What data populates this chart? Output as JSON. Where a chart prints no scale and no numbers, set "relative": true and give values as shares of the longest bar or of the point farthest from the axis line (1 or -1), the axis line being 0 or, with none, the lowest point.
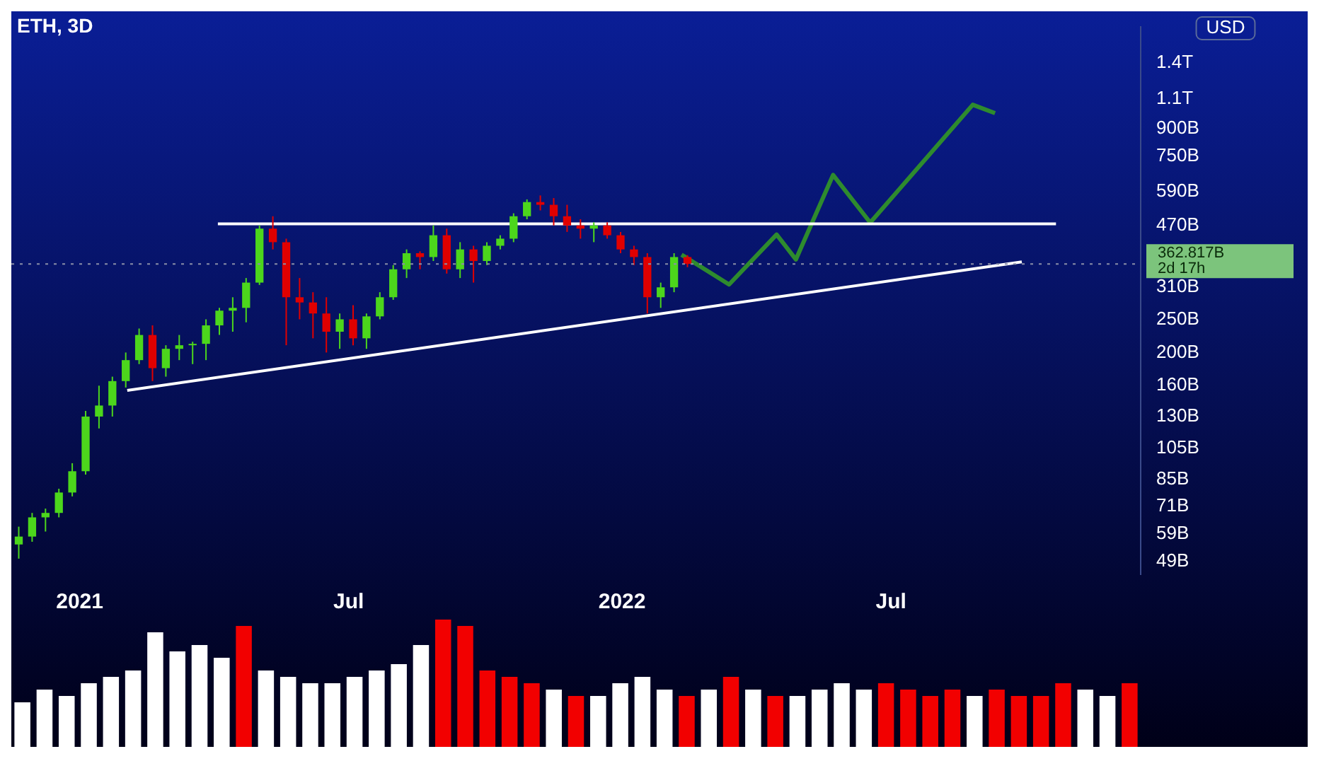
{
  "chart_data": [
    {
      "type": "candlestick",
      "title": "ETH, 3D",
      "x": [
        "2020-11-21",
        "2020-11-30",
        "2020-12-09",
        "2020-12-18",
        "2020-12-27",
        "2021-01-05",
        "2021-01-14",
        "2021-01-23",
        "2021-02-01",
        "2021-02-10",
        "2021-02-19",
        "2021-02-28",
        "2021-03-09",
        "2021-03-18",
        "2021-03-27",
        "2021-04-05",
        "2021-04-14",
        "2021-04-23",
        "2021-05-02",
        "2021-05-11",
        "2021-05-20",
        "2021-05-29",
        "2021-06-07",
        "2021-06-16",
        "2021-06-25",
        "2021-07-04",
        "2021-07-13",
        "2021-07-22",
        "2021-07-31",
        "2021-08-09",
        "2021-08-18",
        "2021-08-27",
        "2021-09-05",
        "2021-09-14",
        "2021-09-23",
        "2021-10-02",
        "2021-10-11",
        "2021-10-20",
        "2021-10-29",
        "2021-11-07",
        "2021-11-16",
        "2021-11-25",
        "2021-12-04",
        "2021-12-13",
        "2021-12-22",
        "2021-12-31",
        "2022-01-09",
        "2022-01-18",
        "2022-01-27",
        "2022-02-05",
        "2022-02-14"
      ],
      "ohlc": [
        [
          55000000000.0,
          62000000000.0,
          50000000000.0,
          58000000000.0
        ],
        [
          58000000000.0,
          68000000000.0,
          56000000000.0,
          66000000000.0
        ],
        [
          66000000000.0,
          70000000000.0,
          60000000000.0,
          68000000000.0
        ],
        [
          68000000000.0,
          80000000000.0,
          66000000000.0,
          78000000000.0
        ],
        [
          78000000000.0,
          95000000000.0,
          76000000000.0,
          90000000000.0
        ],
        [
          90000000000.0,
          135000000000.0,
          88000000000.0,
          130000000000.0
        ],
        [
          130000000000.0,
          160000000000.0,
          120000000000.0,
          140000000000.0
        ],
        [
          140000000000.0,
          170000000000.0,
          130000000000.0,
          165000000000.0
        ],
        [
          165000000000.0,
          200000000000.0,
          158000000000.0,
          190000000000.0
        ],
        [
          190000000000.0,
          235000000000.0,
          185000000000.0,
          225000000000.0
        ],
        [
          225000000000.0,
          240000000000.0,
          165000000000.0,
          180000000000.0
        ],
        [
          180000000000.0,
          210000000000.0,
          170000000000.0,
          205000000000.0
        ],
        [
          205000000000.0,
          225000000000.0,
          190000000000.0,
          210000000000.0
        ],
        [
          210000000000.0,
          215000000000.0,
          185000000000.0,
          212000000000.0
        ],
        [
          212000000000.0,
          250000000000.0,
          190000000000.0,
          240000000000.0
        ],
        [
          240000000000.0,
          270000000000.0,
          225000000000.0,
          265000000000.0
        ],
        [
          265000000000.0,
          290000000000.0,
          230000000000.0,
          270000000000.0
        ],
        [
          270000000000.0,
          330000000000.0,
          245000000000.0,
          320000000000.0
        ],
        [
          320000000000.0,
          470000000000.0,
          315000000000.0,
          460000000000.0
        ],
        [
          460000000000.0,
          500000000000.0,
          400000000000.0,
          420000000000.0
        ],
        [
          420000000000.0,
          430000000000.0,
          210000000000.0,
          290000000000.0
        ],
        [
          290000000000.0,
          330000000000.0,
          250000000000.0,
          280000000000.0
        ],
        [
          280000000000.0,
          300000000000.0,
          220000000000.0,
          260000000000.0
        ],
        [
          260000000000.0,
          290000000000.0,
          200000000000.0,
          230000000000.0
        ],
        [
          230000000000.0,
          260000000000.0,
          205000000000.0,
          250000000000.0
        ],
        [
          250000000000.0,
          275000000000.0,
          210000000000.0,
          220000000000.0
        ],
        [
          220000000000.0,
          260000000000.0,
          205000000000.0,
          255000000000.0
        ],
        [
          255000000000.0,
          300000000000.0,
          250000000000.0,
          290000000000.0
        ],
        [
          290000000000.0,
          360000000000.0,
          285000000000.0,
          350000000000.0
        ],
        [
          350000000000.0,
          400000000000.0,
          330000000000.0,
          390000000000.0
        ],
        [
          390000000000.0,
          395000000000.0,
          350000000000.0,
          380000000000.0
        ],
        [
          380000000000.0,
          470000000000.0,
          370000000000.0,
          440000000000.0
        ],
        [
          440000000000.0,
          460000000000.0,
          340000000000.0,
          350000000000.0
        ],
        [
          350000000000.0,
          420000000000.0,
          330000000000.0,
          400000000000.0
        ],
        [
          400000000000.0,
          410000000000.0,
          320000000000.0,
          370000000000.0
        ],
        [
          370000000000.0,
          420000000000.0,
          360000000000.0,
          410000000000.0
        ],
        [
          410000000000.0,
          440000000000.0,
          400000000000.0,
          430000000000.0
        ],
        [
          430000000000.0,
          510000000000.0,
          420000000000.0,
          500000000000.0
        ],
        [
          500000000000.0,
          560000000000.0,
          490000000000.0,
          550000000000.0
        ],
        [
          550000000000.0,
          575000000000.0,
          520000000000.0,
          540000000000.0
        ],
        [
          540000000000.0,
          565000000000.0,
          470000000000.0,
          500000000000.0
        ],
        [
          500000000000.0,
          540000000000.0,
          450000000000.0,
          470000000000.0
        ],
        [
          470000000000.0,
          490000000000.0,
          430000000000.0,
          460000000000.0
        ],
        [
          460000000000.0,
          480000000000.0,
          420000000000.0,
          470000000000.0
        ],
        [
          470000000000.0,
          480000000000.0,
          430000000000.0,
          440000000000.0
        ],
        [
          440000000000.0,
          450000000000.0,
          390000000000.0,
          400000000000.0
        ],
        [
          400000000000.0,
          410000000000.0,
          360000000000.0,
          380000000000.0
        ],
        [
          380000000000.0,
          390000000000.0,
          260000000000.0,
          290000000000.0
        ],
        [
          290000000000.0,
          320000000000.0,
          270000000000.0,
          310000000000.0
        ],
        [
          310000000000.0,
          390000000000.0,
          300000000000.0,
          380000000000.0
        ],
        [
          380000000000.0,
          385000000000.0,
          355000000000.0,
          362817000000.0
        ]
      ],
      "colors": [
        "#4cd61c",
        "#4cd61c",
        "#4cd61c",
        "#4cd61c",
        "#4cd61c",
        "#4cd61c",
        "#4cd61c",
        "#4cd61c",
        "#4cd61c",
        "#4cd61c",
        "#e00000",
        "#4cd61c",
        "#4cd61c",
        "#4cd61c",
        "#4cd61c",
        "#4cd61c",
        "#4cd61c",
        "#4cd61c",
        "#4cd61c",
        "#e00000",
        "#e00000",
        "#e00000",
        "#e00000",
        "#e00000",
        "#4cd61c",
        "#e00000",
        "#4cd61c",
        "#4cd61c",
        "#4cd61c",
        "#4cd61c",
        "#e00000",
        "#4cd61c",
        "#e00000",
        "#4cd61c",
        "#e00000",
        "#4cd61c",
        "#4cd61c",
        "#4cd61c",
        "#4cd61c",
        "#e00000",
        "#e00000",
        "#e00000",
        "#e00000",
        "#4cd61c",
        "#e00000",
        "#e00000",
        "#e00000",
        "#e00000",
        "#4cd61c",
        "#4cd61c",
        "#e00000"
      ],
      "series": [
        {
          "type": "line",
          "color": "#ffffff",
          "x": [
            "2021-04-04",
            "2022-10-20"
          ],
          "values": [
            475000000000.0,
            475000000000.0
          ]
        },
        {
          "type": "line",
          "color": "#ffffff",
          "x": [
            "2021-02-02",
            "2022-09-27"
          ],
          "values": [
            155000000000.0,
            368000000000.0
          ]
        },
        {
          "type": "line",
          "color": "#2e8b2e",
          "x": [
            "2022-02-10",
            "2022-03-14",
            "2022-04-15",
            "2022-04-28",
            "2022-05-23",
            "2022-06-17",
            "2022-08-25",
            "2022-09-09"
          ],
          "values": [
            386000000000.0,
            316000000000.0,
            442000000000.0,
            374000000000.0,
            660000000000.0,
            479000000000.0,
            1058000000000.0,
            1000000000000.0
          ]
        }
      ],
      "log": "y",
      "xlim": [
        "2020-11-16",
        "2022-12-16"
      ],
      "xticks": [
        {
          "value": "2021-01-01",
          "label": "2021"
        },
        {
          "value": "2021-07-01",
          "label": "Jul"
        },
        {
          "value": "2022-01-01",
          "label": "2022"
        },
        {
          "value": "2022-07-01",
          "label": "Jul"
        }
      ],
      "ylim": [
        45000000000.0,
        1790000000000.0
      ],
      "yticks": [
        {
          "value": 49000000000.0,
          "label": "49B"
        },
        {
          "value": 59000000000.0,
          "label": "59B"
        },
        {
          "value": 71000000000.0,
          "label": "71B"
        },
        {
          "value": 85000000000.0,
          "label": "85B"
        },
        {
          "value": 105000000000.0,
          "label": "105B"
        },
        {
          "value": 130000000000.0,
          "label": "130B"
        },
        {
          "value": 160000000000.0,
          "label": "160B"
        },
        {
          "value": 200000000000.0,
          "label": "200B"
        },
        {
          "value": 250000000000.0,
          "label": "250B"
        },
        {
          "value": 310000000000.0,
          "label": "310B"
        },
        {
          "value": 470000000000.0,
          "label": "470B"
        },
        {
          "value": 590000000000.0,
          "label": "590B"
        },
        {
          "value": 750000000000.0,
          "label": "750B"
        },
        {
          "value": 900000000000.0,
          "label": "900B"
        },
        {
          "value": 1100000000000.0,
          "label": "1.1T"
        },
        {
          "value": 1400000000000.0,
          "label": "1.4T"
        }
      ],
      "ref_lines": [
        {
          "axis": "y",
          "value": 362817000000.0,
          "label": "362.817B",
          "color": "#8a8fa8",
          "line_style": "dotted"
        }
      ],
      "annotations": [
        "2d 17h",
        "USD"
      ],
      "legend": false
    },
    {
      "type": "bar",
      "relative": true,
      "categories": [
        null,
        null,
        null,
        null,
        null,
        null,
        null,
        null,
        null,
        null,
        null,
        null,
        null,
        null,
        null,
        null,
        null,
        null,
        null,
        null,
        null,
        null,
        null,
        null,
        null,
        null,
        null,
        null,
        null,
        null,
        null,
        null,
        null,
        null,
        null,
        null,
        null,
        null,
        null,
        null,
        null,
        null,
        null,
        null,
        null,
        null,
        null,
        null,
        null,
        null,
        null
      ],
      "values": [
        0.35,
        0.45,
        0.4,
        0.5,
        0.55,
        0.6,
        0.9,
        0.75,
        0.8,
        0.7,
        0.95,
        0.6,
        0.55,
        0.5,
        0.5,
        0.55,
        0.6,
        0.65,
        0.8,
        1.0,
        0.95,
        0.6,
        0.55,
        0.5,
        0.45,
        0.4,
        0.4,
        0.5,
        0.55,
        0.45,
        0.4,
        0.45,
        0.55,
        0.45,
        0.4,
        0.4,
        0.45,
        0.5,
        0.45,
        0.5,
        0.45,
        0.4,
        0.45,
        0.4,
        0.45,
        0.4,
        0.4,
        0.5,
        0.45,
        0.4,
        0.5
      ],
      "colors": [
        "#ffffff",
        "#ffffff",
        "#ffffff",
        "#ffffff",
        "#ffffff",
        "#ffffff",
        "#ffffff",
        "#ffffff",
        "#ffffff",
        "#ffffff",
        "#f20000",
        "#ffffff",
        "#ffffff",
        "#ffffff",
        "#ffffff",
        "#ffffff",
        "#ffffff",
        "#ffffff",
        "#ffffff",
        "#f20000",
        "#f20000",
        "#f20000",
        "#f20000",
        "#f20000",
        "#ffffff",
        "#f20000",
        "#ffffff",
        "#ffffff",
        "#ffffff",
        "#ffffff",
        "#f20000",
        "#ffffff",
        "#f20000",
        "#ffffff",
        "#f20000",
        "#ffffff",
        "#ffffff",
        "#ffffff",
        "#ffffff",
        "#f20000",
        "#f20000",
        "#f20000",
        "#f20000",
        "#ffffff",
        "#f20000",
        "#f20000",
        "#f20000",
        "#f20000",
        "#ffffff",
        "#ffffff",
        "#f20000"
      ],
      "legend": false
    }
  ]
}
